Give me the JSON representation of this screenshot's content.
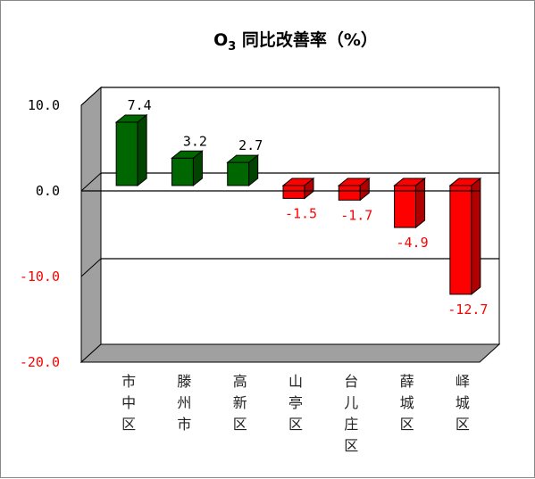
{
  "chart_data": {
    "type": "bar",
    "title_main": "O",
    "title_sub": "3",
    "title_rest": " 同比改善率（%）",
    "categories": [
      [
        "市",
        "中",
        "区"
      ],
      [
        "滕",
        "州",
        "市"
      ],
      [
        "高",
        "新",
        "区"
      ],
      [
        "山",
        "亭",
        "区"
      ],
      [
        "台",
        "儿",
        "庄",
        "区"
      ],
      [
        "薛",
        "城",
        "区"
      ],
      [
        "峄",
        "城",
        "区"
      ]
    ],
    "values": [
      7.4,
      3.2,
      2.7,
      -1.5,
      -1.7,
      -4.9,
      -12.7
    ],
    "value_labels": [
      "7.4",
      "3.2",
      "2.7",
      "-1.5",
      "-1.7",
      "-4.9",
      "-12.7"
    ],
    "ylim": [
      -20,
      10
    ],
    "yticks": [
      10,
      0,
      -10,
      -20
    ],
    "ytick_labels": [
      "10.0",
      "0.0",
      "-10.0",
      "-20.0"
    ],
    "colors": {
      "positive": "#006600",
      "negative": "#ff0000",
      "positive_label": "#000000",
      "negative_label": "#ff0000"
    }
  }
}
